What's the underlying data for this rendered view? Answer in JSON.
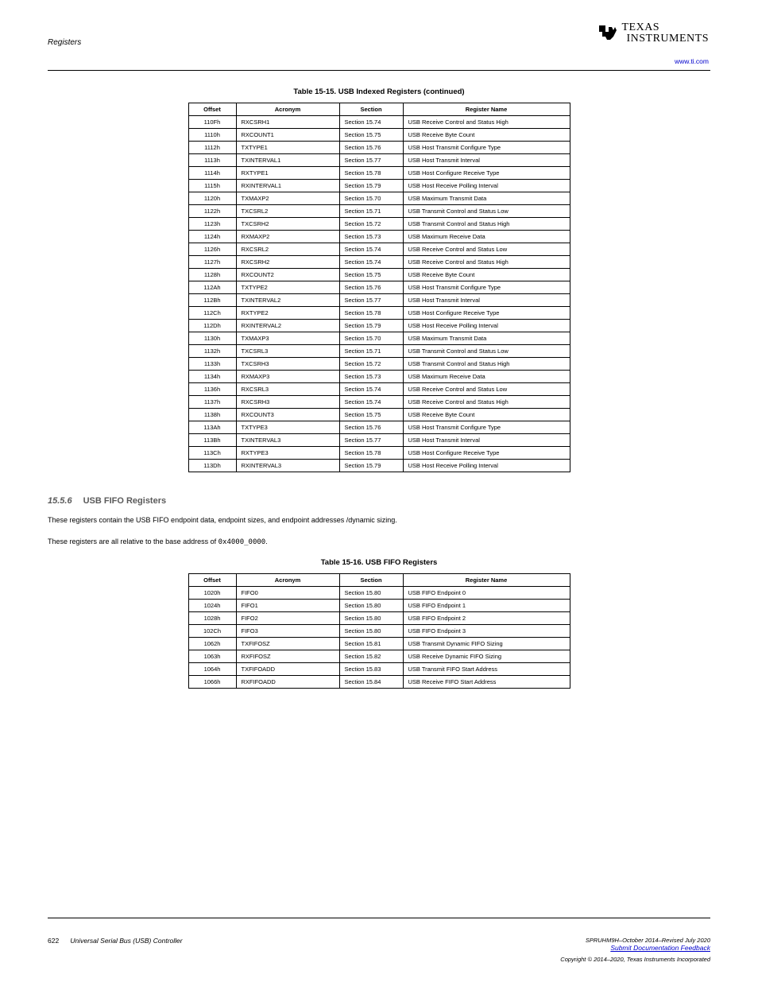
{
  "header": {
    "left_text": "Registers",
    "url": "www.ti.com"
  },
  "logo": {
    "line1": "TEXAS",
    "line2": "INSTRUMENTS"
  },
  "table1": {
    "title": "Table 15-15. USB Indexed Registers (continued)",
    "columns": [
      "Offset",
      "Acronym",
      "Section",
      "Register Name"
    ],
    "col_classes": [
      "col-addr",
      "col-acro",
      "col-sec",
      "col-name"
    ],
    "rows": [
      [
        "110Fh",
        "RXCSRH1",
        "Section 15.74",
        "USB Receive Control and Status High"
      ],
      [
        "1110h",
        "RXCOUNT1",
        "Section 15.75",
        "USB Receive Byte Count"
      ],
      [
        "1112h",
        "TXTYPE1",
        "Section 15.76",
        "USB Host Transmit Configure Type"
      ],
      [
        "1113h",
        "TXINTERVAL1",
        "Section 15.77",
        "USB Host Transmit Interval"
      ],
      [
        "1114h",
        "RXTYPE1",
        "Section 15.78",
        "USB Host Configure Receive Type"
      ],
      [
        "1115h",
        "RXINTERVAL1",
        "Section 15.79",
        "USB Host Receive Polling Interval"
      ],
      [
        "1120h",
        "TXMAXP2",
        "Section 15.70",
        "USB Maximum Transmit Data"
      ],
      [
        "1122h",
        "TXCSRL2",
        "Section 15.71",
        "USB Transmit Control and Status Low"
      ],
      [
        "1123h",
        "TXCSRH2",
        "Section 15.72",
        "USB Transmit Control and Status High"
      ],
      [
        "1124h",
        "RXMAXP2",
        "Section 15.73",
        "USB Maximum Receive Data"
      ],
      [
        "1126h",
        "RXCSRL2",
        "Section 15.74",
        "USB Receive Control and Status Low"
      ],
      [
        "1127h",
        "RXCSRH2",
        "Section 15.74",
        "USB Receive Control and Status High"
      ],
      [
        "1128h",
        "RXCOUNT2",
        "Section 15.75",
        "USB Receive Byte Count"
      ],
      [
        "112Ah",
        "TXTYPE2",
        "Section 15.76",
        "USB Host Transmit Configure Type"
      ],
      [
        "112Bh",
        "TXINTERVAL2",
        "Section 15.77",
        "USB Host Transmit Interval"
      ],
      [
        "112Ch",
        "RXTYPE2",
        "Section 15.78",
        "USB Host Configure Receive Type"
      ],
      [
        "112Dh",
        "RXINTERVAL2",
        "Section 15.79",
        "USB Host Receive Polling Interval"
      ],
      [
        "1130h",
        "TXMAXP3",
        "Section 15.70",
        "USB Maximum Transmit Data"
      ],
      [
        "1132h",
        "TXCSRL3",
        "Section 15.71",
        "USB Transmit Control and Status Low"
      ],
      [
        "1133h",
        "TXCSRH3",
        "Section 15.72",
        "USB Transmit Control and Status High"
      ],
      [
        "1134h",
        "RXMAXP3",
        "Section 15.73",
        "USB Maximum Receive Data"
      ],
      [
        "1136h",
        "RXCSRL3",
        "Section 15.74",
        "USB Receive Control and Status Low"
      ],
      [
        "1137h",
        "RXCSRH3",
        "Section 15.74",
        "USB Receive Control and Status High"
      ],
      [
        "1138h",
        "RXCOUNT3",
        "Section 15.75",
        "USB Receive Byte Count"
      ],
      [
        "113Ah",
        "TXTYPE3",
        "Section 15.76",
        "USB Host Transmit Configure Type"
      ],
      [
        "113Bh",
        "TXINTERVAL3",
        "Section 15.77",
        "USB Host Transmit Interval"
      ],
      [
        "113Ch",
        "RXTYPE3",
        "Section 15.78",
        "USB Host Configure Receive Type"
      ],
      [
        "113Dh",
        "RXINTERVAL3",
        "Section 15.79",
        "USB Host Receive Polling Interval"
      ]
    ]
  },
  "section": {
    "number": "15.5.6",
    "title": "USB FIFO Registers",
    "text1": "These registers contain the USB FIFO endpoint data, endpoint sizes, and endpoint addresses /dynamic sizing.",
    "text2_prefix": "These registers are all relative to the base address of ",
    "text2_addr": "0x4000_0000",
    "text2_suffix": "."
  },
  "table2": {
    "title": "Table 15-16. USB FIFO Registers",
    "columns": [
      "Offset",
      "Acronym",
      "Section",
      "Register Name"
    ],
    "col_classes": [
      "col-addr",
      "col-acro",
      "col-sec",
      "col-name"
    ],
    "rows": [
      [
        "1020h",
        "FIFO0",
        "Section 15.80",
        "USB FIFO Endpoint 0"
      ],
      [
        "1024h",
        "FIFO1",
        "Section 15.80",
        "USB FIFO Endpoint 1"
      ],
      [
        "1028h",
        "FIFO2",
        "Section 15.80",
        "USB FIFO Endpoint 2"
      ],
      [
        "102Ch",
        "FIFO3",
        "Section 15.80",
        "USB FIFO Endpoint 3"
      ],
      [
        "1062h",
        "TXFIFOSZ",
        "Section 15.81",
        "USB Transmit Dynamic FIFO Sizing"
      ],
      [
        "1063h",
        "RXFIFOSZ",
        "Section 15.82",
        "USB Receive Dynamic FIFO Sizing"
      ],
      [
        "1064h",
        "TXFIFOADD",
        "Section 15.83",
        "USB Transmit FIFO Start Address"
      ],
      [
        "1066h",
        "RXFIFOADD",
        "Section 15.84",
        "USB Receive FIFO Start Address"
      ]
    ]
  },
  "footer": {
    "page_num": "622",
    "title": "Universal Serial Bus (USB) Controller",
    "doc_id": "SPRUHM9H–October 2014–Revised July 2020",
    "feedback_text": "Submit Documentation Feedback",
    "copyright": "Copyright © 2014–2020, Texas Instruments Incorporated"
  }
}
